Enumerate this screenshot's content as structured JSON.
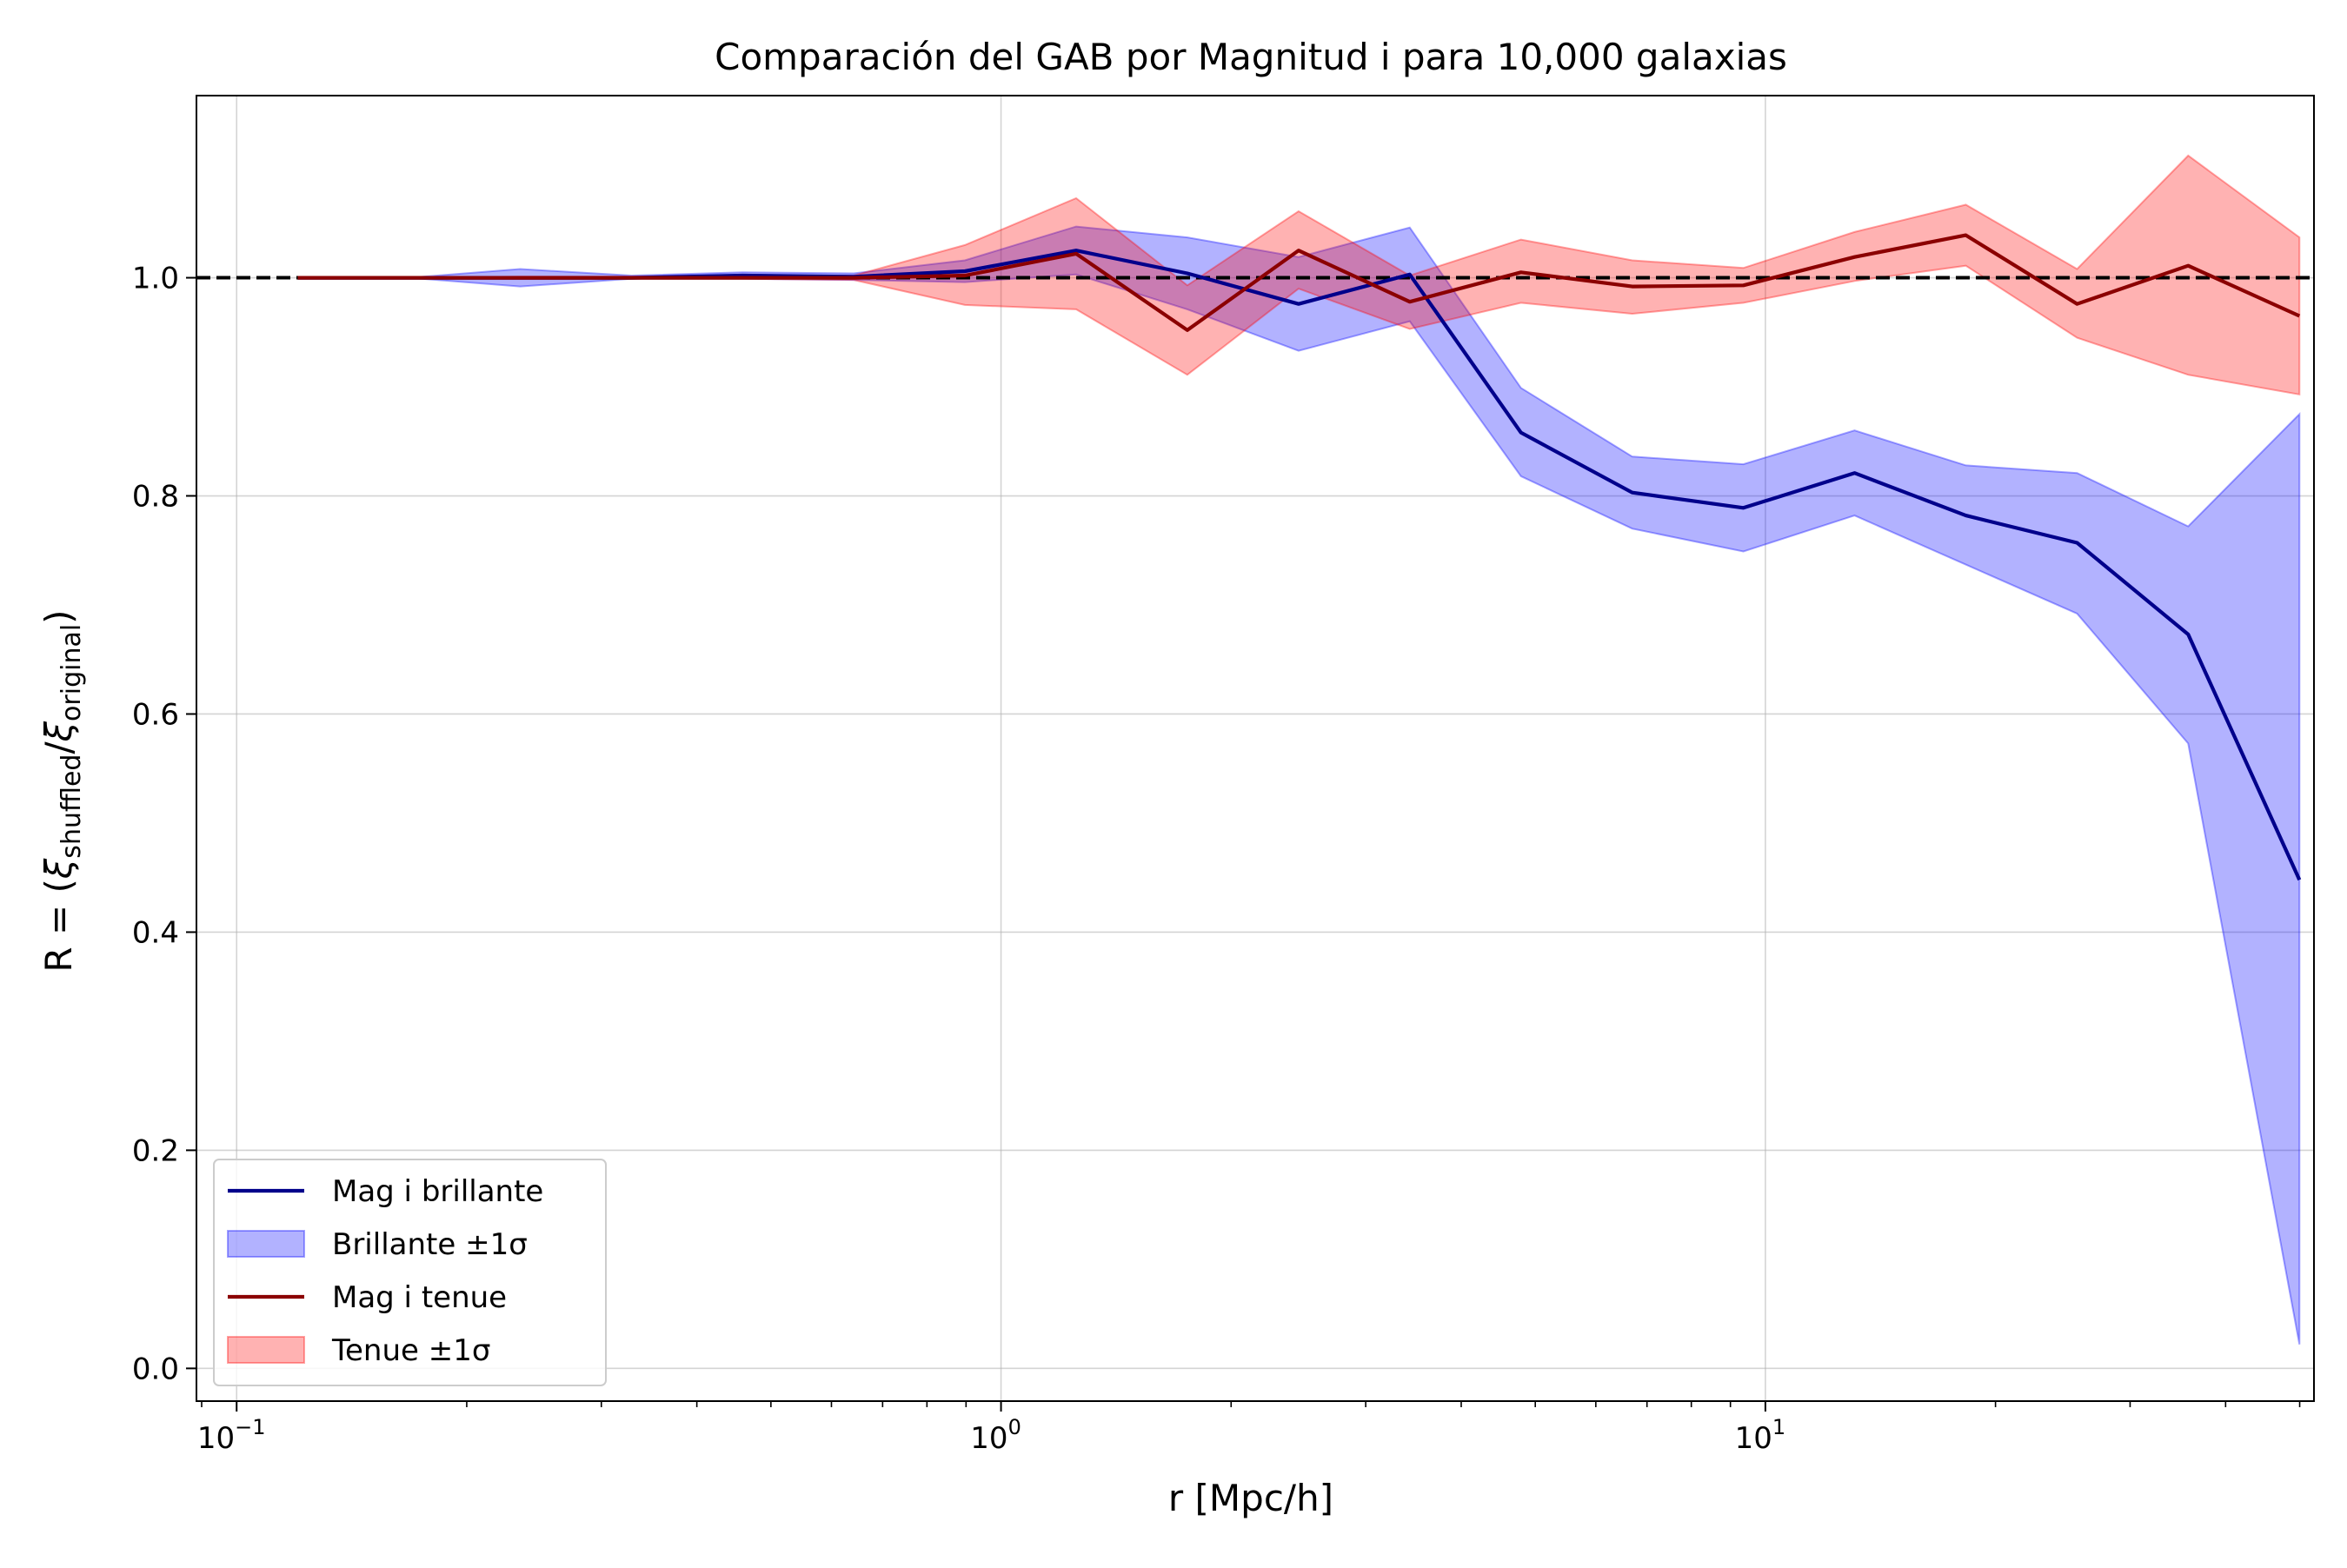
{
  "chart_data": {
    "type": "line",
    "title": "Comparación del GAB por Magnitud i para 10,000 galaxias",
    "xlabel": "r [Mpc/h]",
    "ylabel_parts": {
      "lead": "R = (",
      "xi": "ξ",
      "sub_num": "shuffled",
      "slash": "/",
      "sub_den": "original",
      "tail": ")"
    },
    "x_scale": "log",
    "xlim": [
      0.0886,
      52.2
    ],
    "ylim": [
      -0.03,
      1.167
    ],
    "x_major_ticks": [
      {
        "value": 0.1,
        "base": "10",
        "exp": "−1"
      },
      {
        "value": 1,
        "base": "10",
        "exp": "0"
      },
      {
        "value": 10,
        "base": "10",
        "exp": "1"
      }
    ],
    "y_ticks": [
      {
        "value": 0.0,
        "label": "0.0"
      },
      {
        "value": 0.2,
        "label": "0.2"
      },
      {
        "value": 0.4,
        "label": "0.4"
      },
      {
        "value": 0.6,
        "label": "0.6"
      },
      {
        "value": 0.8,
        "label": "0.8"
      },
      {
        "value": 1.0,
        "label": "1.0"
      }
    ],
    "grid": true,
    "reference_line": {
      "y": 1.0,
      "color": "#000000",
      "style": "dashed"
    },
    "legend_position": "lower-left",
    "x": [
      0.1202,
      0.1681,
      0.2349,
      0.3284,
      0.4591,
      0.6418,
      0.8971,
      1.254,
      1.753,
      2.451,
      3.426,
      4.789,
      6.695,
      9.359,
      13.08,
      18.29,
      25.57,
      35.74,
      49.96
    ],
    "series": [
      {
        "name": "Mag i brillante",
        "line_color": "#00008b",
        "values": [
          1.0,
          1.0,
          1.0,
          1.0,
          1.002,
          1.001,
          1.006,
          1.025,
          1.004,
          0.976,
          1.003,
          0.858,
          0.803,
          0.789,
          0.821,
          0.782,
          0.757,
          0.673,
          0.448
        ]
      },
      {
        "name": "Brillante ±1σ",
        "fill_color": "#0000ff",
        "lower_of": "Mag i brillante",
        "lower": [
          1.0,
          1.0,
          0.992,
          0.999,
          0.999,
          0.998,
          0.996,
          1.003,
          0.971,
          0.933,
          0.96,
          0.818,
          0.77,
          0.749,
          0.782,
          0.737,
          0.692,
          0.573,
          0.022
        ],
        "upper": [
          1.0,
          1.0,
          1.008,
          1.002,
          1.005,
          1.004,
          1.016,
          1.047,
          1.037,
          1.019,
          1.046,
          0.899,
          0.836,
          0.829,
          0.86,
          0.828,
          0.821,
          0.772,
          0.875
        ]
      },
      {
        "name": "Mag i tenue",
        "line_color": "#8b0000",
        "values": [
          1.0,
          1.0,
          1.0,
          1.0,
          1.0,
          1.0,
          1.002,
          1.022,
          0.952,
          1.025,
          0.978,
          1.005,
          0.992,
          0.993,
          1.019,
          1.039,
          0.976,
          1.011,
          0.965
        ]
      },
      {
        "name": "Tenue ±1σ",
        "fill_color": "#ff0000",
        "lower_of": "Mag i tenue",
        "lower": [
          1.0,
          1.0,
          0.999,
          0.999,
          0.999,
          0.998,
          0.975,
          0.971,
          0.911,
          0.99,
          0.953,
          0.977,
          0.967,
          0.977,
          0.997,
          1.011,
          0.945,
          0.911,
          0.893
        ],
        "upper": [
          1.0,
          1.0,
          1.001,
          1.001,
          1.001,
          1.002,
          1.03,
          1.073,
          0.993,
          1.061,
          1.002,
          1.035,
          1.016,
          1.009,
          1.042,
          1.067,
          1.008,
          1.112,
          1.037
        ]
      }
    ]
  }
}
